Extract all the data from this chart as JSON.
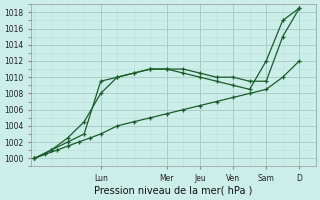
{
  "xlabel": "Pression niveau de la mer( hPa )",
  "bg_color": "#cceee8",
  "grid_major_color": "#aacccc",
  "grid_minor_color": "#bbdddd",
  "line_color": "#1a5c2a",
  "ylim": [
    999.0,
    1019.0
  ],
  "yticks": [
    1000,
    1002,
    1004,
    1006,
    1008,
    1010,
    1012,
    1014,
    1016,
    1018
  ],
  "day_labels": [
    "Lun",
    "Mer",
    "Jeu",
    "Ven",
    "Sam",
    "D"
  ],
  "day_positions": [
    2,
    4,
    5,
    6,
    7,
    8
  ],
  "xlim": [
    -0.1,
    8.5
  ],
  "line1_x": [
    0,
    0.33,
    0.67,
    1.0,
    1.33,
    1.67,
    2.0,
    2.5,
    3.0,
    3.5,
    4.0,
    4.5,
    5.0,
    5.5,
    6.0,
    6.5,
    7.0,
    7.5,
    8.0
  ],
  "line1_y": [
    1000,
    1000.5,
    1001,
    1001.5,
    1002,
    1002.5,
    1003,
    1004,
    1004.5,
    1005,
    1005.5,
    1006,
    1006.5,
    1007,
    1007.5,
    1008,
    1008.5,
    1010,
    1012
  ],
  "line2_x": [
    0,
    0.5,
    1.0,
    1.5,
    2.0,
    2.5,
    3.0,
    3.5,
    4.0,
    4.5,
    5.0,
    5.5,
    6.0,
    6.5,
    7.0,
    7.5,
    8.0
  ],
  "line2_y": [
    1000,
    1001,
    1002,
    1003,
    1009.5,
    1010.0,
    1010.5,
    1011.0,
    1011.0,
    1011.0,
    1010.5,
    1010.0,
    1010.0,
    1009.5,
    1009.5,
    1015.0,
    1018.5
  ],
  "line3_x": [
    0,
    0.5,
    1.0,
    1.5,
    2.0,
    2.5,
    3.0,
    3.5,
    4.0,
    4.5,
    5.0,
    5.5,
    6.0,
    6.5,
    7.0,
    7.5,
    8.0
  ],
  "line3_y": [
    1000,
    1001,
    1002.5,
    1004.5,
    1008.0,
    1010.0,
    1010.5,
    1011.0,
    1011.0,
    1010.5,
    1010.0,
    1009.5,
    1009.0,
    1008.5,
    1012.0,
    1017.0,
    1018.5
  ]
}
